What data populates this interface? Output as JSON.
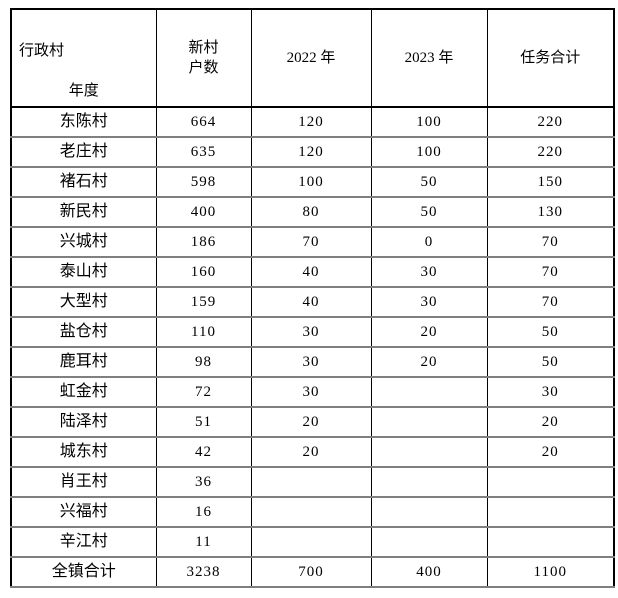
{
  "page": {
    "background": "#ffffff",
    "text_color": "#000000",
    "outer_border_color": "#000000",
    "row_line_color": "#7f7f7f"
  },
  "table": {
    "header": {
      "axis_col_label": "行政村",
      "axis_row_label": "年度",
      "col_households_line1": "新村",
      "col_households_line2": "户数",
      "col_2022": "2022 年",
      "col_2023": "2023 年",
      "col_total": "任务合计"
    },
    "rows": [
      {
        "village": "东陈村",
        "households": "664",
        "y2022": "120",
        "y2023": "100",
        "total": "220"
      },
      {
        "village": "老庄村",
        "households": "635",
        "y2022": "120",
        "y2023": "100",
        "total": "220"
      },
      {
        "village": "褚石村",
        "households": "598",
        "y2022": "100",
        "y2023": "50",
        "total": "150"
      },
      {
        "village": "新民村",
        "households": "400",
        "y2022": "80",
        "y2023": "50",
        "total": "130"
      },
      {
        "village": "兴城村",
        "households": "186",
        "y2022": "70",
        "y2023": "0",
        "total": "70"
      },
      {
        "village": "泰山村",
        "households": "160",
        "y2022": "40",
        "y2023": "30",
        "total": "70"
      },
      {
        "village": "大型村",
        "households": "159",
        "y2022": "40",
        "y2023": "30",
        "total": "70"
      },
      {
        "village": "盐仓村",
        "households": "110",
        "y2022": "30",
        "y2023": "20",
        "total": "50"
      },
      {
        "village": "鹿耳村",
        "households": "98",
        "y2022": "30",
        "y2023": "20",
        "total": "50"
      },
      {
        "village": "虹金村",
        "households": "72",
        "y2022": "30",
        "y2023": "",
        "total": "30"
      },
      {
        "village": "陆泽村",
        "households": "51",
        "y2022": "20",
        "y2023": "",
        "total": "20"
      },
      {
        "village": "城东村",
        "households": "42",
        "y2022": "20",
        "y2023": "",
        "total": "20"
      },
      {
        "village": "肖王村",
        "households": "36",
        "y2022": "",
        "y2023": "",
        "total": ""
      },
      {
        "village": "兴福村",
        "households": "16",
        "y2022": "",
        "y2023": "",
        "total": ""
      },
      {
        "village": "辛江村",
        "households": "11",
        "y2022": "",
        "y2023": "",
        "total": ""
      }
    ],
    "total_row": {
      "village": "全镇合计",
      "households": "3238",
      "y2022": "700",
      "y2023": "400",
      "total": "1100"
    }
  }
}
